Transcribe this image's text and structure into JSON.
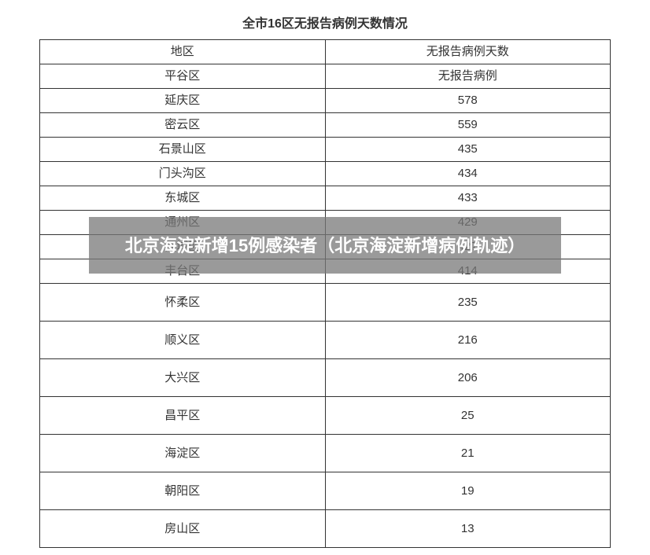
{
  "title": "全市16区无报告病例天数情况",
  "columns": [
    "地区",
    "无报告病例天数"
  ],
  "rows": [
    {
      "region": "平谷区",
      "days": "无报告病例",
      "tall": false
    },
    {
      "region": "延庆区",
      "days": "578",
      "tall": false
    },
    {
      "region": "密云区",
      "days": "559",
      "tall": false
    },
    {
      "region": "石景山区",
      "days": "435",
      "tall": false
    },
    {
      "region": "门头沟区",
      "days": "434",
      "tall": false
    },
    {
      "region": "东城区",
      "days": "433",
      "tall": false
    },
    {
      "region": "通州区",
      "days": "429",
      "tall": false
    },
    {
      "region": "西城区",
      "days": "427",
      "tall": false
    },
    {
      "region": "丰台区",
      "days": "414",
      "tall": false
    },
    {
      "region": "怀柔区",
      "days": "235",
      "tall": true
    },
    {
      "region": "顺义区",
      "days": "216",
      "tall": true
    },
    {
      "region": "大兴区",
      "days": "206",
      "tall": true
    },
    {
      "region": "昌平区",
      "days": "25",
      "tall": true
    },
    {
      "region": "海淀区",
      "days": "21",
      "tall": true
    },
    {
      "region": "朝阳区",
      "days": "19",
      "tall": true
    },
    {
      "region": "房山区",
      "days": "13",
      "tall": true
    }
  ],
  "overlay_text": "北京海淀新增15例感染者（北京海淀新增病例轨迹）",
  "style": {
    "background_color": "#ffffff",
    "border_color": "#333333",
    "text_color": "#333333",
    "title_fontsize": 16,
    "cell_fontsize": 15,
    "overlay_bg": "rgba(120,120,120,0.75)",
    "overlay_text_color": "#ffffff",
    "overlay_fontsize": 22,
    "row_height_short": 30,
    "row_height_tall": 47
  }
}
